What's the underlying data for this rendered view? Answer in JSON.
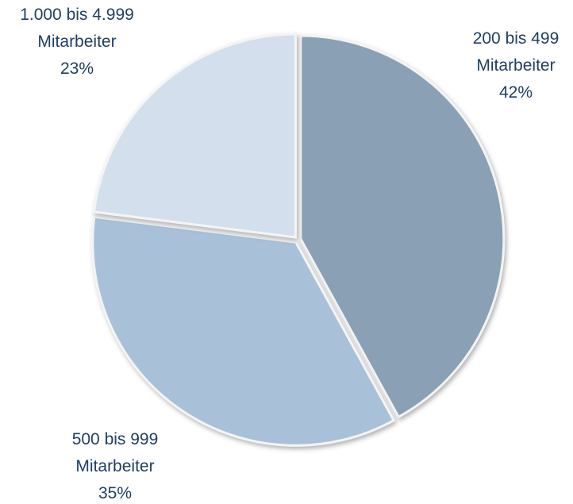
{
  "chart_data": {
    "type": "pie",
    "categories": [
      "200 bis 499 Mitarbeiter",
      "500 bis 999 Mitarbeiter",
      "1.000 bis 4.999 Mitarbeiter"
    ],
    "values": [
      42,
      35,
      23
    ],
    "value_labels": [
      "42%",
      "35%",
      "23%"
    ],
    "colors": [
      "#8aa0b4",
      "#a8c1d8",
      "#d3dfec"
    ],
    "start_angle": 0,
    "direction": "clockwise"
  }
}
